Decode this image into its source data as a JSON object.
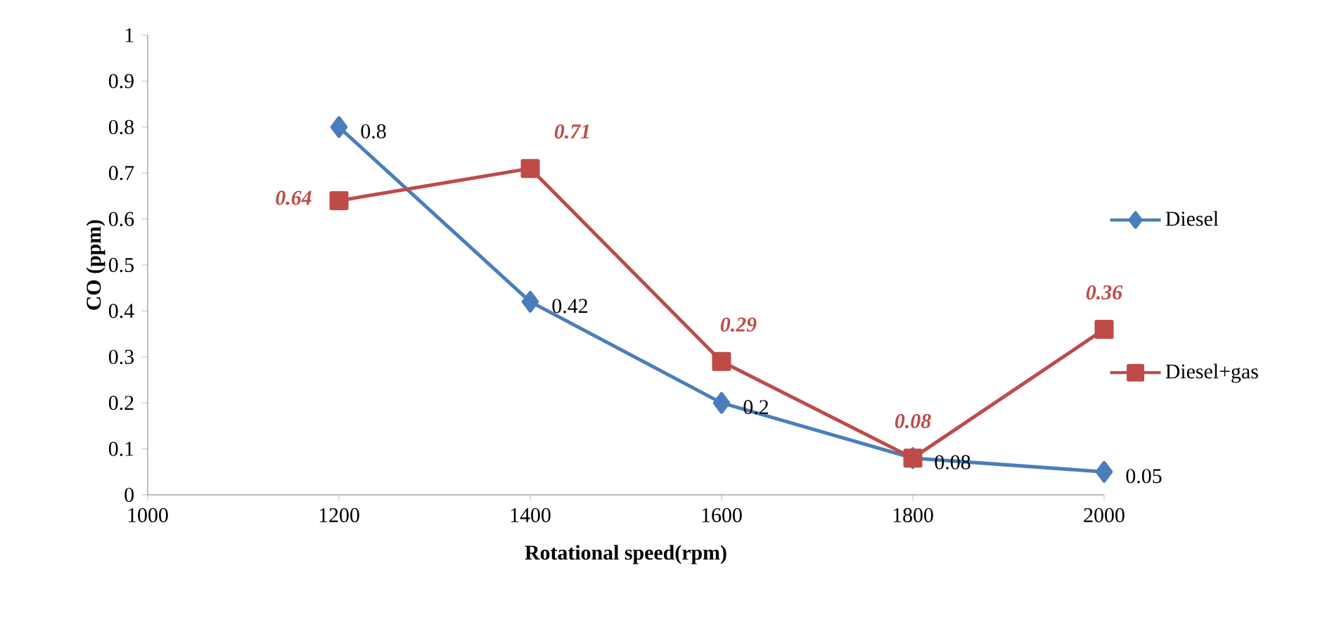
{
  "chart_data": {
    "type": "line",
    "xlabel": "Rotational speed(rpm)",
    "ylabel": "CO (ppm)",
    "x": [
      1200,
      1400,
      1600,
      1800,
      2000
    ],
    "series": [
      {
        "name": "Diesel",
        "color": "#4a7ebb",
        "marker": "diamond",
        "values": [
          0.8,
          0.42,
          0.2,
          0.08,
          0.05
        ]
      },
      {
        "name": "Diesel+gas",
        "color": "#be4b48",
        "marker": "square",
        "values": [
          0.64,
          0.71,
          0.29,
          0.08,
          0.36
        ]
      }
    ],
    "xlim": [
      1000,
      2000
    ],
    "xticks": [
      1000,
      1200,
      1400,
      1600,
      1800,
      2000
    ],
    "ylim": [
      0,
      1
    ],
    "yticks": [
      0,
      0.1,
      0.2,
      0.3,
      0.4,
      0.5,
      0.6,
      0.7,
      0.8,
      0.9,
      1
    ],
    "grid": false,
    "legend": "right",
    "data_labels": true,
    "line_style": "solid"
  }
}
